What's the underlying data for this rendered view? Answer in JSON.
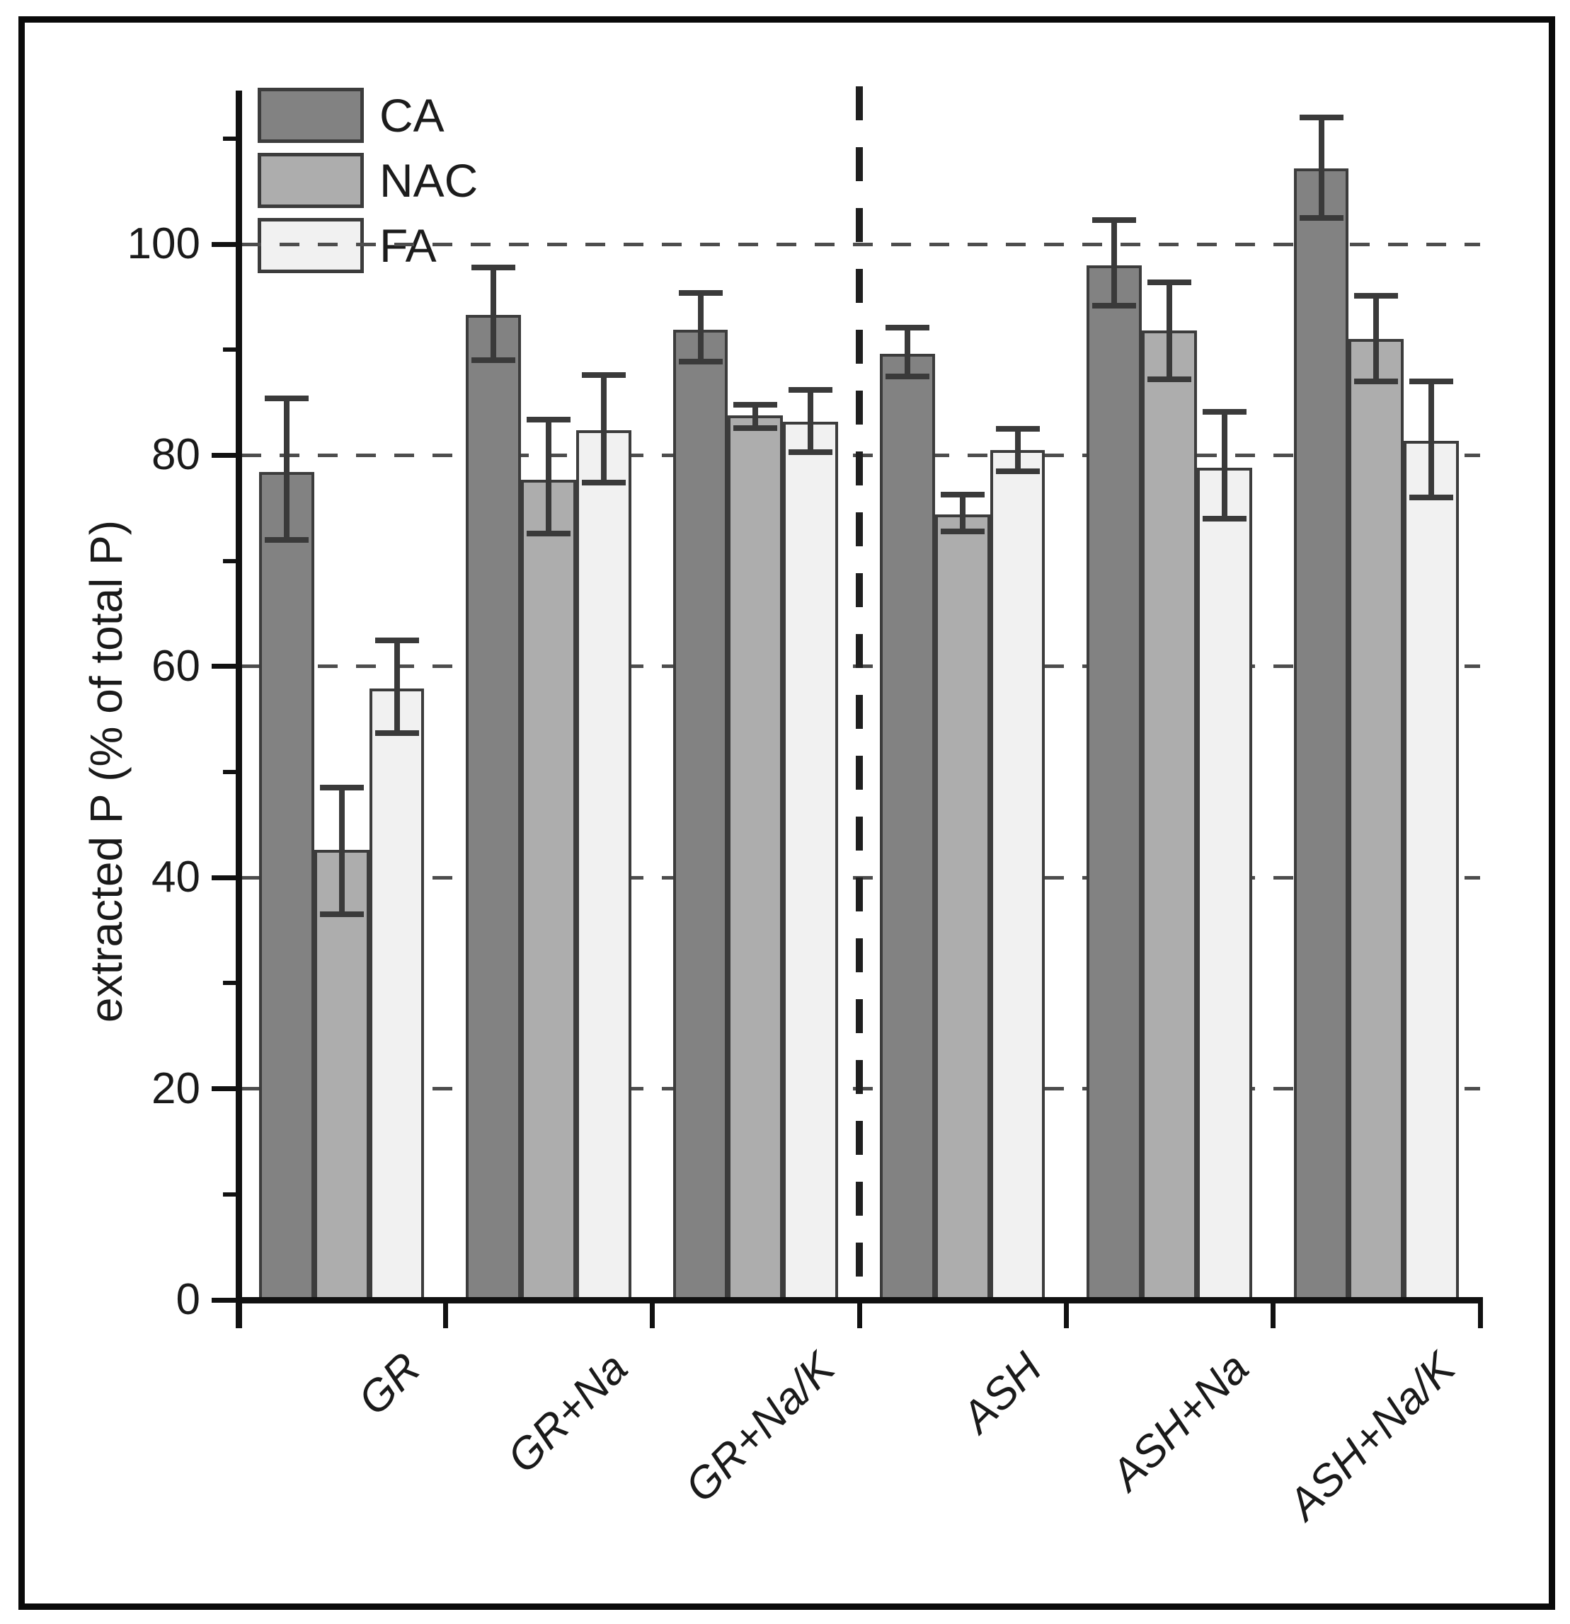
{
  "figure": {
    "background_color": "#ffffff",
    "frame_color": "#0a0a0a"
  },
  "chart_data": {
    "type": "bar",
    "title": "",
    "xlabel": "",
    "ylabel": "extracted P (% of total P)",
    "ylim": [
      0,
      115
    ],
    "yticks_major": [
      0,
      20,
      40,
      60,
      80,
      100
    ],
    "yticks_minor": [
      10,
      30,
      50,
      70,
      90,
      110
    ],
    "gridlines_at": [
      20,
      40,
      60,
      80,
      100
    ],
    "grid_style": "dashed",
    "legend_position": "top-left-inside",
    "legend_entries": [
      "CA",
      "NAC",
      "FA"
    ],
    "separator_after_category": "GR+Na/K",
    "categories": [
      "GR",
      "GR+Na",
      "GR+Na/K",
      "ASH",
      "ASH+Na",
      "ASH+Na/K"
    ],
    "series": [
      {
        "name": "CA",
        "color": "#828282",
        "values": [
          78.4,
          93.3,
          91.9,
          89.6,
          98.0,
          107.2
        ],
        "err_up": [
          7.0,
          4.5,
          3.5,
          2.5,
          4.3,
          4.8
        ],
        "err_down": [
          6.4,
          4.3,
          3.0,
          2.1,
          3.8,
          4.7
        ]
      },
      {
        "name": "NAC",
        "color": "#adadad",
        "values": [
          42.6,
          77.7,
          83.8,
          74.4,
          91.8,
          91.0
        ],
        "err_up": [
          5.9,
          5.7,
          1.0,
          1.9,
          4.6,
          4.1
        ],
        "err_down": [
          6.1,
          5.1,
          1.2,
          1.6,
          4.6,
          4.0
        ]
      },
      {
        "name": "FA",
        "color": "#f1f1f1",
        "values": [
          57.9,
          82.4,
          83.2,
          80.5,
          78.8,
          81.4
        ],
        "err_up": [
          4.6,
          5.2,
          3.0,
          2.0,
          5.3,
          5.6
        ],
        "err_down": [
          4.2,
          5.0,
          2.9,
          2.0,
          4.8,
          5.4
        ]
      }
    ],
    "bar_border_color": "#3c3c3c",
    "error_bar_color": "#3a3a3a",
    "gridline_color": "#4d4d4d",
    "axis_color": "#111111"
  }
}
